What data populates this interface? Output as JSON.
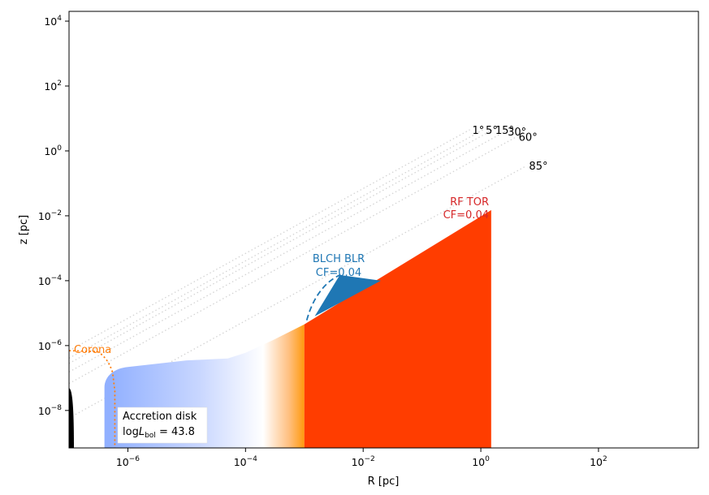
{
  "chart_data": {
    "type": "area",
    "xlabel": "R [pc]",
    "ylabel": "z [pc]",
    "xscale": "log",
    "yscale": "log",
    "xlim": [
      1e-07,
      5000
    ],
    "ylim": [
      7e-10,
      20000
    ],
    "x_ticks": [
      {
        "value": 1e-06,
        "base": "10",
        "exp": "−6"
      },
      {
        "value": 0.0001,
        "base": "10",
        "exp": "−4"
      },
      {
        "value": 0.01,
        "base": "10",
        "exp": "−2"
      },
      {
        "value": 1,
        "base": "10",
        "exp": "0"
      },
      {
        "value": 100,
        "base": "10",
        "exp": "2"
      }
    ],
    "y_ticks": [
      {
        "value": 1e-08,
        "base": "10",
        "exp": "−8"
      },
      {
        "value": 1e-06,
        "base": "10",
        "exp": "−6"
      },
      {
        "value": 0.0001,
        "base": "10",
        "exp": "−4"
      },
      {
        "value": 0.01,
        "base": "10",
        "exp": "−2"
      },
      {
        "value": 1,
        "base": "10",
        "exp": "0"
      },
      {
        "value": 100,
        "base": "10",
        "exp": "2"
      },
      {
        "value": 10000,
        "base": "10",
        "exp": "4"
      }
    ],
    "inclination_lines": [
      {
        "label": "1°",
        "end": [
          0.65,
          4.5
        ]
      },
      {
        "label": "5°",
        "end": [
          1.1,
          4.5
        ]
      },
      {
        "label": "15°",
        "end": [
          1.6,
          4.5
        ]
      },
      {
        "label": "30°",
        "end": [
          2.6,
          4.0
        ]
      },
      {
        "label": "60°",
        "end": [
          4.0,
          2.7
        ]
      },
      {
        "label": "85°",
        "end": [
          6.0,
          0.35
        ]
      }
    ],
    "accretion_disk": {
      "label_line1": "Accretion disk",
      "label_line2_prefix": "log",
      "label_line2_var": "L",
      "label_line2_sub": "bol",
      "label_line2_suffix": " = 43.8",
      "profile": [
        [
          4e-07,
          5e-08
        ],
        [
          1e-06,
          2.2e-07
        ],
        [
          1e-05,
          3.5e-07
        ],
        [
          5e-05,
          4e-07
        ],
        [
          0.0001,
          6e-07
        ],
        [
          0.0003,
          1.5e-06
        ],
        [
          0.001,
          4.5e-06
        ]
      ],
      "colors": [
        "#91b0ff",
        "#ffffff",
        "#ffb060",
        "#ff8c00",
        "#ff3d00"
      ]
    },
    "torus": {
      "label": "RF TOR",
      "cf": "CF=0.04",
      "color": "#ff3d00",
      "profile": [
        [
          0.001,
          4.5e-06
        ],
        [
          1.5,
          0.015
        ]
      ]
    },
    "blr": {
      "label": "BLCH BLR",
      "cf": "CF=0.04",
      "color": "#1f77b4",
      "polygon": [
        [
          0.0015,
          8e-06
        ],
        [
          0.004,
          0.00015
        ],
        [
          0.02,
          0.0001
        ]
      ],
      "dashed_arc": [
        [
          0.0011,
          6e-06
        ],
        [
          0.0014,
          3e-05
        ],
        [
          0.0022,
          9e-05
        ],
        [
          0.004,
          0.00015
        ]
      ]
    },
    "corona": {
      "label": "Corona",
      "color": "#ff7f0e",
      "path": [
        [
          1e-07,
          7e-07
        ],
        [
          3e-07,
          6.5e-07
        ],
        [
          4.5e-07,
          4.5e-07
        ],
        [
          5.5e-07,
          1.5e-07
        ],
        [
          6e-07,
          4e-08
        ],
        [
          6e-07,
          7e-10
        ]
      ]
    }
  }
}
